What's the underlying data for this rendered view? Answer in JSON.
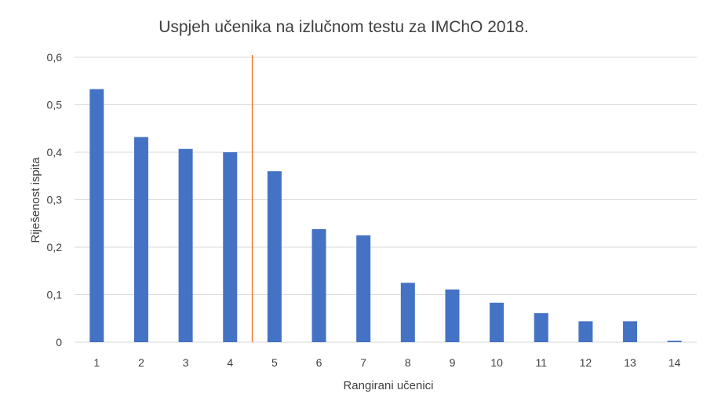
{
  "chart_data": {
    "type": "bar",
    "title": "Uspjeh učenika na izlučnom testu za IMChO 2018.",
    "xlabel": "Rangirani učenici",
    "ylabel": "Riješenost ispita",
    "categories": [
      "1",
      "2",
      "3",
      "4",
      "5",
      "6",
      "7",
      "8",
      "9",
      "10",
      "11",
      "12",
      "13",
      "14"
    ],
    "values": [
      0.533,
      0.432,
      0.407,
      0.4,
      0.36,
      0.238,
      0.225,
      0.125,
      0.111,
      0.083,
      0.061,
      0.044,
      0.044,
      0.003
    ],
    "ylim": [
      0,
      0.6
    ],
    "yticks": [
      {
        "value": 0,
        "label": "0"
      },
      {
        "value": 0.1,
        "label": "0,1"
      },
      {
        "value": 0.2,
        "label": "0,2"
      },
      {
        "value": 0.3,
        "label": "0,3"
      },
      {
        "value": 0.4,
        "label": "0,4"
      },
      {
        "value": 0.5,
        "label": "0,5"
      },
      {
        "value": 0.6,
        "label": "0,6"
      }
    ],
    "cutoff_after_category": "4",
    "grid": true,
    "legend": "none",
    "bar_color": "#4472c4",
    "cutoff_line_color": "#ed7d31"
  }
}
